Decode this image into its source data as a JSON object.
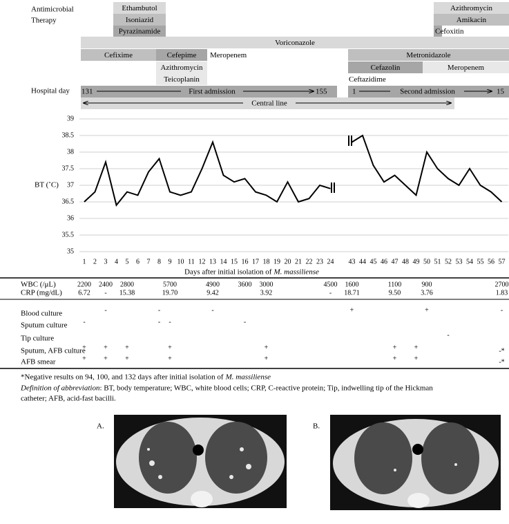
{
  "therapy": {
    "label": [
      "Antimicrobial",
      "Therapy"
    ],
    "drugs": [
      "Ethambutol",
      "Isoniazid",
      "Pyrazinamide",
      "Azithromycin",
      "Amikacin",
      "Cefoxitin",
      "Voriconazole",
      "Cefixime",
      "Cefepime",
      "Meropenem",
      "Metronidazole",
      "Azithromycin",
      "Teicoplanin",
      "Cefazolin",
      "Meropenem",
      "Ceftazidime"
    ]
  },
  "hospital_day": {
    "label": "Hospital day",
    "first": {
      "start": 131,
      "label": "First admission",
      "end": 155
    },
    "second": {
      "start": 1,
      "label": "Second admission",
      "end": 15
    }
  },
  "central_line": "Central line",
  "chart_data": {
    "type": "line",
    "ylabel": "BT (˚C)",
    "xlabel": "Days after initial isolation of",
    "xlabel_italic": "M. massiliense",
    "categories": [
      1,
      2,
      3,
      4,
      5,
      6,
      7,
      8,
      9,
      10,
      11,
      12,
      13,
      14,
      15,
      16,
      17,
      18,
      19,
      20,
      21,
      22,
      23,
      24,
      null,
      43,
      44,
      45,
      46,
      47,
      48,
      49,
      50,
      51,
      52,
      53,
      54,
      55,
      56,
      57
    ],
    "values": [
      36.5,
      36.8,
      37.7,
      36.4,
      36.8,
      36.7,
      37.4,
      37.8,
      36.8,
      36.7,
      36.8,
      37.5,
      38.3,
      37.3,
      37.1,
      37.2,
      36.8,
      36.7,
      36.5,
      37.1,
      36.5,
      36.6,
      37.0,
      36.9,
      null,
      38.3,
      38.5,
      37.6,
      37.1,
      37.3,
      37.0,
      36.7,
      38.0,
      37.5,
      37.2,
      37.0,
      37.5,
      37.0,
      36.8,
      36.5
    ],
    "color": "#000000",
    "ylim": [
      35,
      39
    ],
    "yticks": [
      35,
      35.5,
      36,
      36.5,
      37,
      37.5,
      38,
      38.5,
      39
    ],
    "grid": true
  },
  "table": {
    "rows": [
      {
        "label": "WBC (/μL)",
        "cells": [
          2200,
          null,
          2400,
          null,
          2800,
          null,
          null,
          null,
          5700,
          null,
          null,
          null,
          4900,
          null,
          null,
          3600,
          null,
          3000,
          null,
          null,
          null,
          null,
          null,
          4500,
          null,
          1600,
          null,
          null,
          null,
          1100,
          null,
          null,
          900,
          null,
          null,
          null,
          null,
          null,
          null,
          2700
        ]
      },
      {
        "label": "CRP (mg/dL)",
        "cells": [
          "6.72",
          null,
          "-",
          null,
          "15.38",
          null,
          null,
          null,
          "19.70",
          null,
          null,
          null,
          "9.42",
          null,
          null,
          null,
          null,
          "3.92",
          null,
          null,
          null,
          null,
          null,
          "-",
          null,
          "18.71",
          null,
          null,
          null,
          "9.50",
          null,
          null,
          "3.76",
          null,
          null,
          null,
          null,
          null,
          null,
          "1.83"
        ]
      },
      {
        "label": "Blood culture",
        "cells": [
          null,
          null,
          "-",
          null,
          null,
          null,
          null,
          "-",
          null,
          null,
          null,
          null,
          "-",
          null,
          null,
          null,
          null,
          null,
          null,
          null,
          null,
          null,
          null,
          null,
          null,
          "+",
          null,
          null,
          null,
          null,
          null,
          null,
          "+",
          null,
          null,
          null,
          null,
          null,
          null,
          "-"
        ]
      },
      {
        "label": "Sputum culture",
        "cells": [
          "-",
          null,
          null,
          null,
          null,
          null,
          null,
          "-",
          "-",
          null,
          null,
          null,
          null,
          null,
          null,
          "-",
          null,
          null,
          null,
          null,
          null,
          null,
          null,
          null,
          null,
          null,
          null,
          null,
          null,
          null,
          null,
          null,
          null,
          null,
          null,
          null,
          null,
          null,
          null,
          null
        ]
      },
      {
        "label": "Tip culture",
        "cells": [
          null,
          null,
          null,
          null,
          null,
          null,
          null,
          null,
          null,
          null,
          null,
          null,
          null,
          null,
          null,
          null,
          null,
          null,
          null,
          null,
          null,
          null,
          null,
          null,
          null,
          null,
          null,
          null,
          null,
          null,
          null,
          null,
          null,
          null,
          "-",
          null,
          null,
          null,
          null,
          null
        ]
      },
      {
        "label": "Sputum, AFB culture",
        "cells": [
          "+",
          null,
          "+",
          null,
          "+",
          null,
          null,
          null,
          "+",
          null,
          null,
          null,
          null,
          null,
          null,
          null,
          null,
          "+",
          null,
          null,
          null,
          null,
          null,
          null,
          null,
          null,
          null,
          null,
          null,
          "+",
          null,
          "+",
          null,
          null,
          null,
          null,
          null,
          null,
          null,
          "-*"
        ]
      },
      {
        "label": "AFB smear",
        "cells": [
          "+",
          null,
          "+",
          null,
          "+",
          null,
          null,
          null,
          "+",
          null,
          null,
          null,
          null,
          null,
          null,
          null,
          null,
          "+",
          null,
          null,
          null,
          null,
          null,
          null,
          null,
          null,
          null,
          null,
          null,
          "+",
          null,
          "+",
          null,
          null,
          null,
          null,
          null,
          null,
          null,
          "-*"
        ]
      }
    ]
  },
  "notes": {
    "negative": "*Negative results on 94, 100, and 132 days after initial isolation of",
    "negative_italic": "M. massiliense",
    "definition_italic": "Definition of abbreviation",
    "definition": ": BT, body temperature; WBC, white blood cells; CRP, C-reactive protein; Tip, indwelling tip of the Hickman",
    "definition_cont": "catheter; AFB, acid-fast bacilli."
  },
  "images": [
    "A.",
    "B."
  ]
}
